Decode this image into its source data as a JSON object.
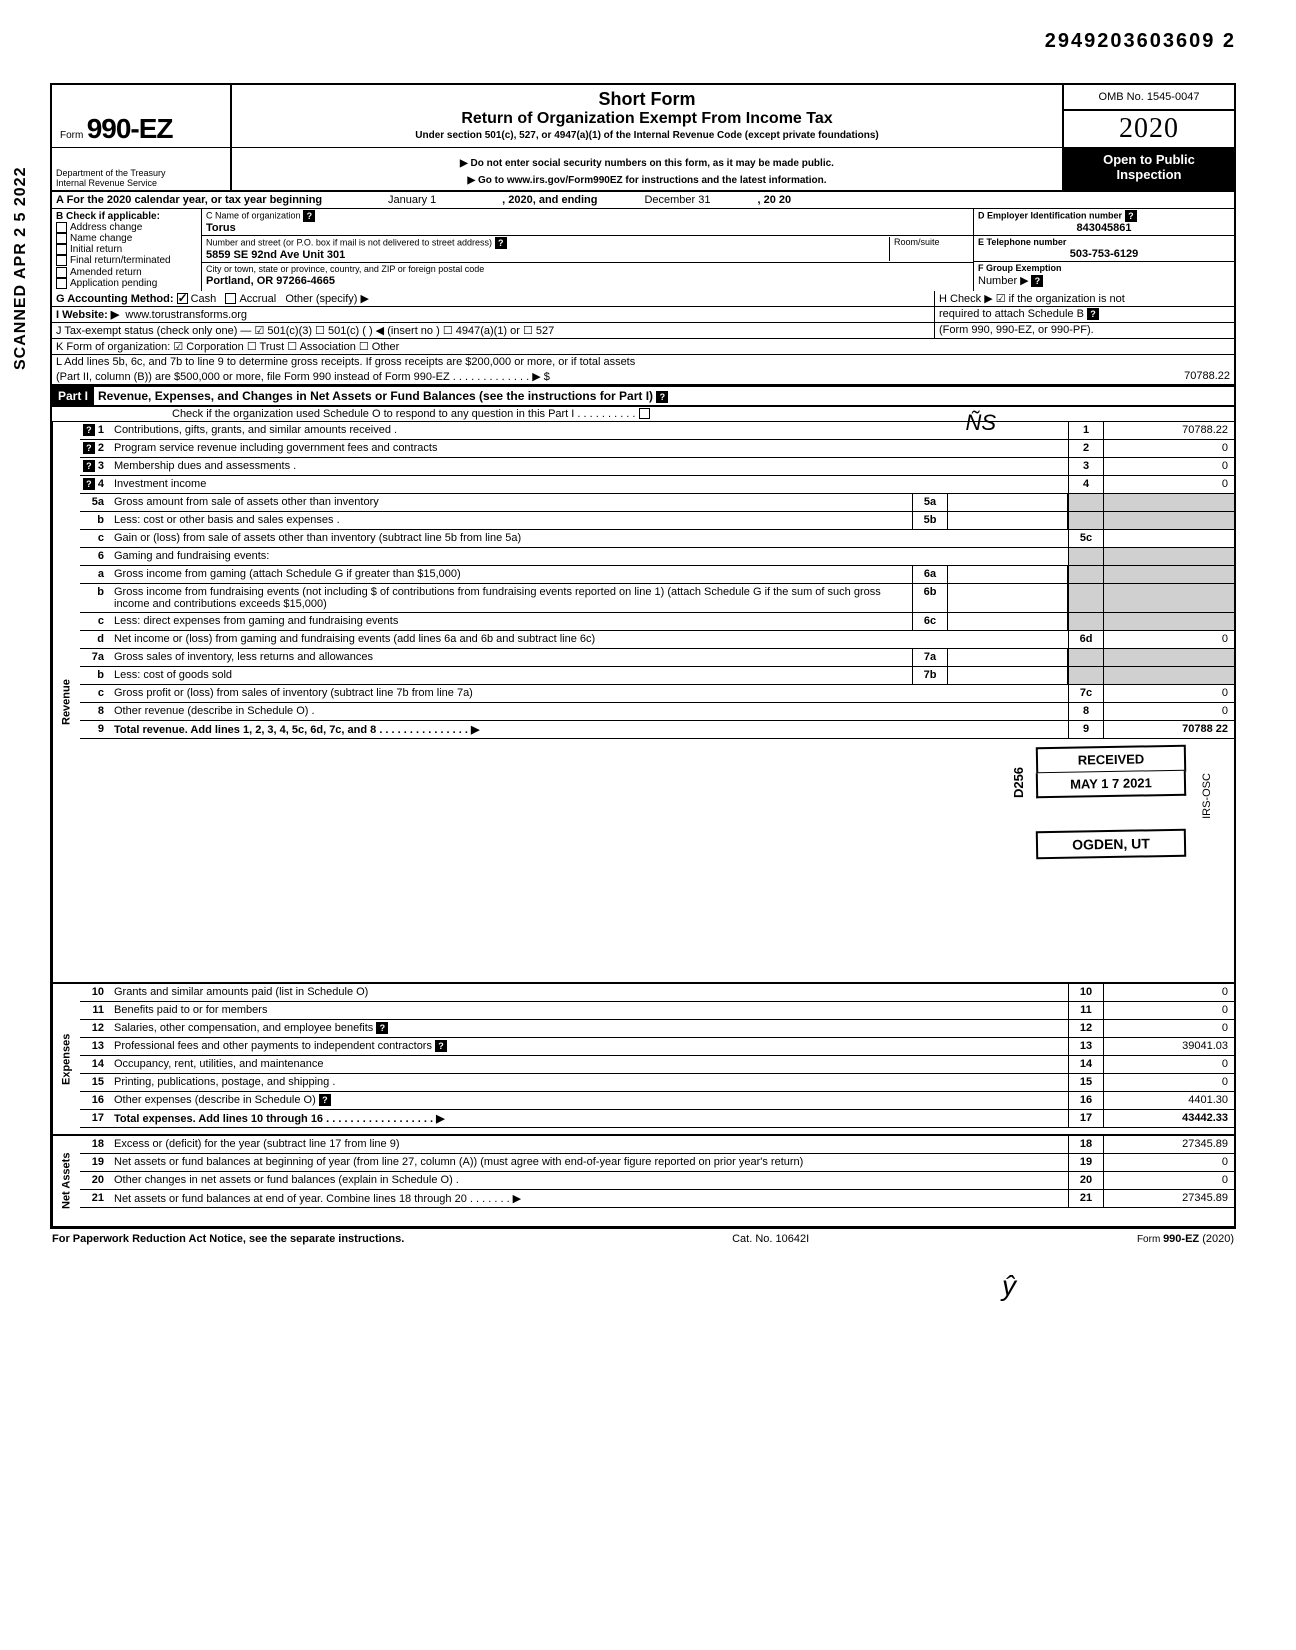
{
  "top_code": "2949203603609  2",
  "scanned": "SCANNED APR 2 5 2022",
  "header": {
    "form_prefix": "Form",
    "form_number": "990-EZ",
    "title1": "Short Form",
    "title2": "Return of Organization Exempt From Income Tax",
    "title3": "Under section 501(c), 527, or 4947(a)(1) of the Internal Revenue Code (except private foundations)",
    "note1": "▶ Do not enter social security numbers on this form, as it may be made public.",
    "note2": "▶ Go to www.irs.gov/Form990EZ for instructions and the latest information.",
    "omb": "OMB No. 1545-0047",
    "year": "2020",
    "open": "Open to Public",
    "inspection": "Inspection",
    "dept1": "Department of the Treasury",
    "dept2": "Internal Revenue Service"
  },
  "rowA": {
    "prefix": "A  For the 2020 calendar year, or tax year beginning",
    "begin": "January 1",
    "mid": ", 2020, and ending",
    "end": "December 31",
    "yr": ", 20   20"
  },
  "colB": {
    "header": "B  Check if applicable:",
    "items": [
      "Address change",
      "Name change",
      "Initial return",
      "Final return/terminated",
      "Amended return",
      "Application pending"
    ]
  },
  "colC": {
    "name_lbl": "C  Name of organization",
    "name_val": "Torus",
    "addr_lbl": "Number and street (or P.O. box if mail is not delivered to street address)",
    "room_lbl": "Room/suite",
    "addr_val": "5859 SE 92nd Ave Unit 301",
    "city_lbl": "City or town, state or province, country, and ZIP or foreign postal code",
    "city_val": "Portland, OR 97266-4665"
  },
  "colD": {
    "ein_lbl": "D Employer Identification number",
    "ein_val": "843045861",
    "tel_lbl": "E Telephone number",
    "tel_val": "503-753-6129",
    "grp_lbl": "F  Group Exemption",
    "grp_num": "Number  ▶"
  },
  "rowG": {
    "lbl": "G  Accounting Method:",
    "cash": "Cash",
    "accrual": "Accrual",
    "other": "Other (specify) ▶"
  },
  "rowH": "H  Check ▶ ☑ if the organization is not",
  "rowH2": "required to attach Schedule B",
  "rowH3": "(Form 990, 990-EZ, or 990-PF).",
  "rowI": {
    "lbl": "I   Website: ▶",
    "val": "www.torustransforms.org"
  },
  "rowJ": "J  Tax-exempt status (check only one) — ☑ 501(c)(3)   ☐ 501(c) (        ) ◀ (insert no ) ☐ 4947(a)(1) or   ☐ 527",
  "rowK": "K  Form of organization:   ☑ Corporation     ☐ Trust            ☐ Association       ☐ Other",
  "rowL1": "L  Add lines 5b, 6c, and 7b to line 9 to determine gross receipts. If gross receipts are $200,000 or more, or if total assets",
  "rowL2": "(Part II, column (B)) are $500,000 or more, file Form 990 instead of Form 990-EZ .   .   .   .   .   .   .   .   .   .   .   .   .   ▶   $",
  "rowL_val": "70788.22",
  "part1": {
    "label": "Part I",
    "title": "Revenue, Expenses, and Changes in Net Assets or Fund Balances (see the instructions for Part I)",
    "check": "Check if the organization used Schedule O to respond to any question in this Part I  .   .   .   .   .   .   .   .   .   ."
  },
  "sections": {
    "revenue": "Revenue",
    "expenses": "Expenses",
    "netassets": "Net Assets"
  },
  "lines": [
    {
      "n": "1",
      "d": "Contributions, gifts, grants, and similar amounts received .",
      "r": "1",
      "v": "70788.22",
      "help": true
    },
    {
      "n": "2",
      "d": "Program service revenue including government fees and contracts",
      "r": "2",
      "v": "0",
      "help": true
    },
    {
      "n": "3",
      "d": "Membership dues and assessments .",
      "r": "3",
      "v": "0",
      "help": true
    },
    {
      "n": "4",
      "d": "Investment income",
      "r": "4",
      "v": "0",
      "help": true
    },
    {
      "n": "5a",
      "d": "Gross amount from sale of assets other than inventory",
      "mid": "5a",
      "midv": ""
    },
    {
      "n": "b",
      "d": "Less: cost or other basis and sales expenses .",
      "mid": "5b",
      "midv": ""
    },
    {
      "n": "c",
      "d": "Gain or (loss) from sale of assets other than inventory (subtract line 5b from line 5a)",
      "r": "5c",
      "v": ""
    },
    {
      "n": "6",
      "d": "Gaming and fundraising events:"
    },
    {
      "n": "a",
      "d": "Gross income from gaming (attach Schedule G if greater than $15,000)",
      "mid": "6a",
      "midv": ""
    },
    {
      "n": "b",
      "d": "Gross income from fundraising events (not including  $                    of contributions from fundraising events reported on line 1) (attach Schedule G if the sum of such gross income and contributions exceeds $15,000)",
      "mid": "6b",
      "midv": ""
    },
    {
      "n": "c",
      "d": "Less: direct expenses from gaming and fundraising events",
      "mid": "6c",
      "midv": ""
    },
    {
      "n": "d",
      "d": "Net income or (loss) from gaming and fundraising events (add lines 6a and 6b and subtract line 6c)",
      "r": "6d",
      "v": "0"
    },
    {
      "n": "7a",
      "d": "Gross sales of inventory, less returns and allowances",
      "mid": "7a",
      "midv": ""
    },
    {
      "n": "b",
      "d": "Less: cost of goods sold",
      "mid": "7b",
      "midv": ""
    },
    {
      "n": "c",
      "d": "Gross profit or (loss) from sales of inventory (subtract line 7b from line 7a)",
      "r": "7c",
      "v": "0"
    },
    {
      "n": "8",
      "d": "Other revenue (describe in Schedule O) .",
      "r": "8",
      "v": "0"
    },
    {
      "n": "9",
      "d": "Total revenue. Add lines 1, 2, 3, 4, 5c, 6d, 7c, and 8   .   .   .   .   .   .   .   .   .   .   .   .   .   .   .   ▶",
      "r": "9",
      "v": "70788 22",
      "bold": true
    },
    {
      "n": "10",
      "d": "Grants and similar amounts paid (list in Schedule O)",
      "r": "10",
      "v": "0"
    },
    {
      "n": "11",
      "d": "Benefits paid to or for members",
      "r": "11",
      "v": "0"
    },
    {
      "n": "12",
      "d": "Salaries, other compensation, and employee benefits",
      "r": "12",
      "v": "0",
      "qmark": true
    },
    {
      "n": "13",
      "d": "Professional fees and other payments to independent contractors",
      "r": "13",
      "v": "39041.03",
      "qmark": true
    },
    {
      "n": "14",
      "d": "Occupancy, rent, utilities, and maintenance",
      "r": "14",
      "v": "0"
    },
    {
      "n": "15",
      "d": "Printing, publications, postage, and shipping .",
      "r": "15",
      "v": "0"
    },
    {
      "n": "16",
      "d": "Other expenses (describe in Schedule O)",
      "r": "16",
      "v": "4401.30",
      "qmark": true
    },
    {
      "n": "17",
      "d": "Total expenses. Add lines 10 through 16   .   .   .   .   .   .   .   .   .   .   .   .   .   .   .   .   .   .   ▶",
      "r": "17",
      "v": "43442.33",
      "bold": true
    },
    {
      "n": "18",
      "d": "Excess or (deficit) for the year (subtract line 17 from line 9)",
      "r": "18",
      "v": "27345.89"
    },
    {
      "n": "19",
      "d": "Net assets or fund balances at beginning of year (from line 27, column (A)) (must agree with end-of-year figure reported on prior year's return)",
      "r": "19",
      "v": "0"
    },
    {
      "n": "20",
      "d": "Other changes in net assets or fund balances (explain in Schedule O) .",
      "r": "20",
      "v": "0"
    },
    {
      "n": "21",
      "d": "Net assets or fund balances at end of year. Combine lines 18 through 20   .   .   .   .   .   .   .   ▶",
      "r": "21",
      "v": "27345.89"
    }
  ],
  "stamps": {
    "received": "RECEIVED",
    "date": "MAY 1 7 2021",
    "ogden": "OGDEN, UT",
    "d256": "D256",
    "irs": "IRS-OSC"
  },
  "footer": {
    "left": "For Paperwork Reduction Act Notice, see the separate instructions.",
    "mid": "Cat. No. 10642I",
    "right": "Form 990-EZ (2020)"
  }
}
